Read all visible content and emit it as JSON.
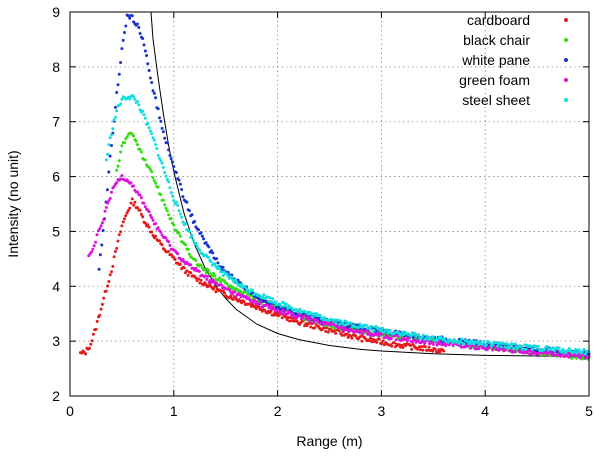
{
  "chart_data": {
    "type": "scatter",
    "xlabel": "Range (m)",
    "ylabel": "Intensity (no unit)",
    "xlim": [
      0,
      5
    ],
    "ylim": [
      2,
      9
    ],
    "xticks": [
      "0",
      "1",
      "2",
      "3",
      "4",
      "5"
    ],
    "yticks": [
      "2",
      "3",
      "4",
      "5",
      "6",
      "7",
      "8",
      "9"
    ],
    "grid": true,
    "legend_position": "top-right",
    "series": [
      {
        "name": "cardboard",
        "color": "#e41a1c",
        "points": [
          [
            0.1,
            2.77
          ],
          [
            0.15,
            2.8
          ],
          [
            0.2,
            2.95
          ],
          [
            0.25,
            3.25
          ],
          [
            0.3,
            3.6
          ],
          [
            0.35,
            3.95
          ],
          [
            0.4,
            4.3
          ],
          [
            0.45,
            4.7
          ],
          [
            0.5,
            5.1
          ],
          [
            0.55,
            5.35
          ],
          [
            0.6,
            5.55
          ],
          [
            0.65,
            5.45
          ],
          [
            0.7,
            5.25
          ],
          [
            0.8,
            4.95
          ],
          [
            0.9,
            4.7
          ],
          [
            1.0,
            4.5
          ],
          [
            1.1,
            4.3
          ],
          [
            1.2,
            4.15
          ],
          [
            1.3,
            4.05
          ],
          [
            1.5,
            3.85
          ],
          [
            1.7,
            3.7
          ],
          [
            1.9,
            3.55
          ],
          [
            2.2,
            3.35
          ],
          [
            2.5,
            3.2
          ],
          [
            2.8,
            3.05
          ],
          [
            3.1,
            2.95
          ],
          [
            3.4,
            2.87
          ],
          [
            3.6,
            2.82
          ]
        ]
      },
      {
        "name": "black chair",
        "color": "#33dd11",
        "points": [
          [
            0.45,
            6.1
          ],
          [
            0.5,
            6.55
          ],
          [
            0.55,
            6.75
          ],
          [
            0.6,
            6.75
          ],
          [
            0.65,
            6.6
          ],
          [
            0.7,
            6.35
          ],
          [
            0.8,
            6.0
          ],
          [
            0.9,
            5.55
          ],
          [
            1.0,
            5.1
          ],
          [
            1.1,
            4.75
          ],
          [
            1.2,
            4.45
          ],
          [
            1.3,
            4.3
          ],
          [
            1.5,
            4.05
          ],
          [
            1.7,
            3.85
          ],
          [
            2.0,
            3.6
          ],
          [
            2.3,
            3.4
          ],
          [
            2.6,
            3.25
          ],
          [
            3.0,
            3.12
          ],
          [
            3.5,
            3.0
          ],
          [
            4.0,
            2.9
          ],
          [
            4.5,
            2.8
          ],
          [
            5.0,
            2.7
          ]
        ]
      },
      {
        "name": "white pane",
        "color": "#1a33cc",
        "points": [
          [
            0.28,
            4.3
          ],
          [
            0.32,
            5.0
          ],
          [
            0.36,
            5.8
          ],
          [
            0.4,
            6.6
          ],
          [
            0.45,
            7.5
          ],
          [
            0.5,
            8.3
          ],
          [
            0.55,
            8.9
          ],
          [
            0.6,
            8.9
          ],
          [
            0.65,
            8.75
          ],
          [
            0.7,
            8.5
          ],
          [
            0.8,
            7.6
          ],
          [
            0.9,
            6.8
          ],
          [
            1.0,
            6.2
          ],
          [
            1.1,
            5.6
          ],
          [
            1.2,
            5.15
          ],
          [
            1.3,
            4.8
          ],
          [
            1.4,
            4.5
          ],
          [
            1.5,
            4.25
          ],
          [
            1.7,
            3.95
          ],
          [
            1.9,
            3.7
          ],
          [
            2.2,
            3.5
          ],
          [
            2.5,
            3.35
          ],
          [
            2.8,
            3.25
          ],
          [
            3.1,
            3.15
          ],
          [
            3.5,
            3.05
          ],
          [
            4.0,
            2.95
          ],
          [
            4.5,
            2.85
          ],
          [
            5.0,
            2.77
          ]
        ]
      },
      {
        "name": "green foam",
        "color": "#dd11dd",
        "points": [
          [
            0.18,
            4.55
          ],
          [
            0.22,
            4.65
          ],
          [
            0.26,
            4.9
          ],
          [
            0.3,
            5.1
          ],
          [
            0.35,
            5.4
          ],
          [
            0.4,
            5.7
          ],
          [
            0.45,
            5.9
          ],
          [
            0.5,
            6.0
          ],
          [
            0.55,
            5.95
          ],
          [
            0.6,
            5.85
          ],
          [
            0.7,
            5.55
          ],
          [
            0.8,
            5.2
          ],
          [
            0.9,
            4.9
          ],
          [
            1.0,
            4.65
          ],
          [
            1.1,
            4.45
          ],
          [
            1.2,
            4.3
          ],
          [
            1.4,
            4.05
          ],
          [
            1.6,
            3.85
          ],
          [
            1.8,
            3.7
          ],
          [
            2.0,
            3.55
          ],
          [
            2.3,
            3.4
          ],
          [
            2.6,
            3.25
          ],
          [
            3.0,
            3.1
          ],
          [
            3.5,
            2.98
          ],
          [
            4.0,
            2.88
          ],
          [
            4.5,
            2.8
          ],
          [
            5.0,
            2.72
          ]
        ]
      },
      {
        "name": "steel sheet",
        "color": "#11dddd",
        "points": [
          [
            0.35,
            6.3
          ],
          [
            0.4,
            6.8
          ],
          [
            0.45,
            7.2
          ],
          [
            0.5,
            7.4
          ],
          [
            0.55,
            7.45
          ],
          [
            0.6,
            7.45
          ],
          [
            0.65,
            7.35
          ],
          [
            0.7,
            7.15
          ],
          [
            0.8,
            6.7
          ],
          [
            0.9,
            6.15
          ],
          [
            1.0,
            5.6
          ],
          [
            1.1,
            5.15
          ],
          [
            1.2,
            4.8
          ],
          [
            1.3,
            4.55
          ],
          [
            1.5,
            4.2
          ],
          [
            1.7,
            3.95
          ],
          [
            2.0,
            3.7
          ],
          [
            2.3,
            3.5
          ],
          [
            2.6,
            3.35
          ],
          [
            3.0,
            3.2
          ],
          [
            3.5,
            3.05
          ],
          [
            4.0,
            2.95
          ],
          [
            4.5,
            2.87
          ],
          [
            5.0,
            2.8
          ]
        ]
      }
    ],
    "fit_curve": {
      "color": "#000000",
      "x": [
        0.78,
        0.8,
        0.85,
        0.9,
        0.95,
        1.0,
        1.1,
        1.2,
        1.3,
        1.4,
        1.5,
        1.6,
        1.8,
        2.0,
        2.2,
        2.5,
        2.8,
        3.0,
        3.5,
        4.0,
        4.5,
        5.0
      ],
      "y": [
        9.0,
        8.51,
        7.79,
        7.14,
        6.57,
        6.09,
        5.32,
        4.76,
        4.34,
        4.02,
        3.78,
        3.58,
        3.31,
        3.14,
        3.03,
        2.92,
        2.85,
        2.82,
        2.77,
        2.74,
        2.73,
        2.72
      ]
    }
  }
}
